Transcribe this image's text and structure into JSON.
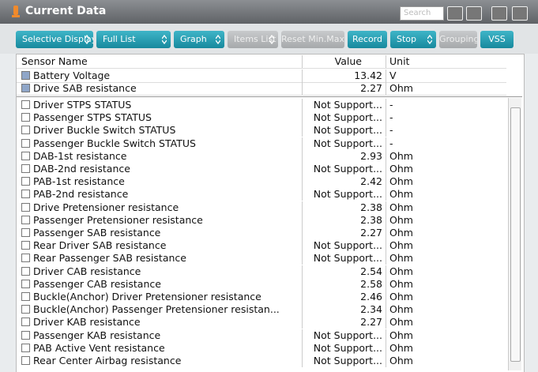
{
  "header": {
    "title": "Current Data",
    "search_placeholder": "Search"
  },
  "toolbar": {
    "buttons": [
      {
        "label": "Selective Display",
        "enabled": true,
        "dropdown": true
      },
      {
        "label": "Full List",
        "enabled": true,
        "dropdown": true
      },
      {
        "label": "Graph",
        "enabled": true,
        "dropdown": true
      },
      {
        "label": "Items List",
        "enabled": false,
        "dropdown": true
      },
      {
        "label": "Reset Min.Max",
        "enabled": false,
        "dropdown": false
      },
      {
        "label": "Record",
        "enabled": true,
        "dropdown": false
      },
      {
        "label": "Stop",
        "enabled": true,
        "dropdown": true
      },
      {
        "label": "Grouping",
        "enabled": false,
        "dropdown": false
      },
      {
        "label": "VSS",
        "enabled": true,
        "dropdown": false
      }
    ]
  },
  "table": {
    "columns": [
      "Sensor Name",
      "Value",
      "Unit"
    ],
    "pinned_rows": [
      [
        "Battery Voltage",
        "13.42",
        "V"
      ],
      [
        "Drive SAB resistance",
        "2.27",
        "Ohm"
      ]
    ],
    "rows": [
      [
        "Driver STPS STATUS",
        "Not Support...",
        "-"
      ],
      [
        "Passenger STPS STATUS",
        "Not Support...",
        "-"
      ],
      [
        "Driver Buckle Switch STATUS",
        "Not Support...",
        "-"
      ],
      [
        "Passenger Buckle Switch STATUS",
        "Not Support...",
        "-"
      ],
      [
        "DAB-1st resistance",
        "2.93",
        "Ohm"
      ],
      [
        "DAB-2nd resistance",
        "Not Support...",
        "Ohm"
      ],
      [
        "PAB-1st resistance",
        "2.42",
        "Ohm"
      ],
      [
        "PAB-2nd resistance",
        "Not Support...",
        "Ohm"
      ],
      [
        "Drive Pretensioner resistance",
        "2.38",
        "Ohm"
      ],
      [
        "Passenger Pretensioner resistance",
        "2.38",
        "Ohm"
      ],
      [
        "Passenger SAB resistance",
        "2.27",
        "Ohm"
      ],
      [
        "Rear Driver SAB resistance",
        "Not Support...",
        "Ohm"
      ],
      [
        "Rear Passenger SAB resistance",
        "Not Support...",
        "Ohm"
      ],
      [
        "Driver CAB resistance",
        "2.54",
        "Ohm"
      ],
      [
        "Passenger CAB resistance",
        "2.58",
        "Ohm"
      ],
      [
        "Buckle(Anchor) Driver Pretensioner resistance",
        "2.46",
        "Ohm"
      ],
      [
        "Buckle(Anchor) Passenger Pretensioner resistan...",
        "2.34",
        "Ohm"
      ],
      [
        "Driver KAB resistance",
        "2.27",
        "Ohm"
      ],
      [
        "Passenger KAB resistance",
        "Not Support...",
        "Ohm"
      ],
      [
        "PAB Active Vent resistance",
        "Not Support...",
        "Ohm"
      ],
      [
        "Rear Center Airbag resistance",
        "Not Support...",
        "Ohm"
      ]
    ]
  }
}
